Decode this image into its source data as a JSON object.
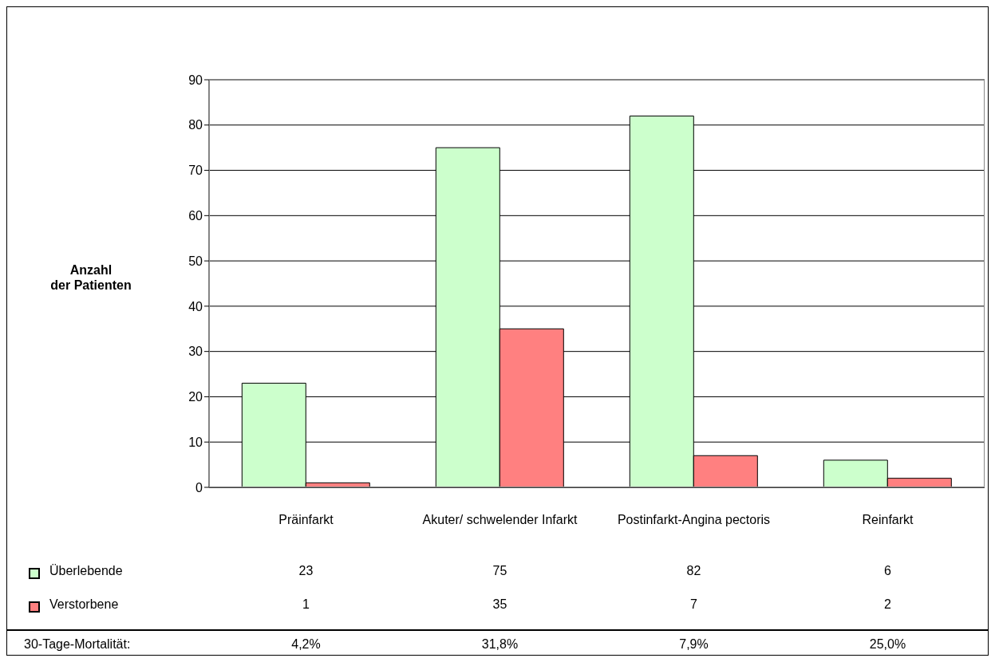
{
  "chart_data": {
    "type": "bar",
    "ylabel": "Anzahl\nder Patienten",
    "categories": [
      "Präinfarkt",
      "Akuter/ schwelender Infarkt",
      "Postinfarkt-Angina pectoris",
      "Reinfarkt"
    ],
    "series": [
      {
        "name": "Überlebende",
        "color": "#ccffcc",
        "values": [
          23,
          75,
          82,
          6
        ]
      },
      {
        "name": "Verstorbene",
        "color": "#ff8080",
        "values": [
          1,
          35,
          7,
          2
        ]
      }
    ],
    "ylim": [
      0,
      90
    ],
    "yticks": [
      0,
      10,
      20,
      30,
      40,
      50,
      60,
      70,
      80,
      90
    ],
    "grid": "y",
    "legend": "bottom left",
    "data_labels": true,
    "annotations": [
      "30-Tage-Mortalität:",
      "4,2%",
      "31,8%",
      "7,9%",
      "25,0%"
    ]
  }
}
